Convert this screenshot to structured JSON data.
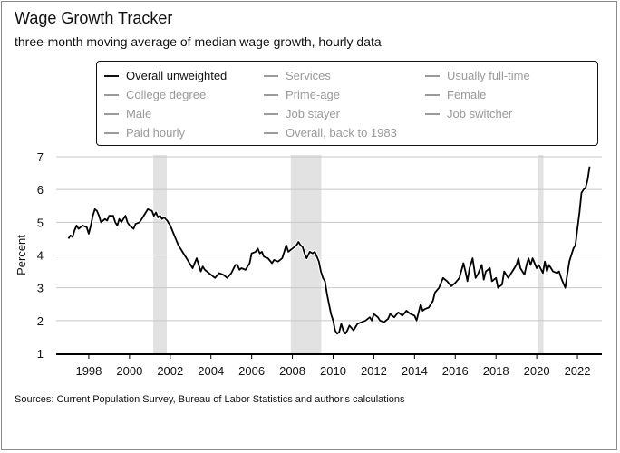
{
  "header": {
    "title": "Wage Growth Tracker",
    "subtitle": "three-month moving average of median wage growth, hourly data"
  },
  "legend": {
    "items": [
      {
        "label": "Overall unweighted",
        "active": true
      },
      {
        "label": "Services",
        "active": false
      },
      {
        "label": "Usually full-time",
        "active": false
      },
      {
        "label": "College degree",
        "active": false
      },
      {
        "label": "Prime-age",
        "active": false
      },
      {
        "label": "Female",
        "active": false
      },
      {
        "label": "Male",
        "active": false
      },
      {
        "label": "Job stayer",
        "active": false
      },
      {
        "label": "Job switcher",
        "active": false
      },
      {
        "label": "Paid hourly",
        "active": false
      },
      {
        "label": "Overall, back to 1983",
        "active": false
      }
    ]
  },
  "footer": {
    "source": "Sources: Current Population Survey, Bureau of Labor Statistics and author's calculations"
  },
  "colors": {
    "line": "#000000",
    "recession": "#e2e2e2",
    "grid": "#c8c8c8",
    "inactive_legend": "#9a9a9a"
  },
  "chart_data": {
    "type": "line",
    "title": "Wage Growth Tracker",
    "subtitle": "three-month moving average of median wage growth, hourly data",
    "xlabel": "",
    "ylabel": "Percent",
    "xlim": [
      1996.4,
      2023.2
    ],
    "ylim": [
      1,
      7
    ],
    "xticks": [
      1998,
      2000,
      2002,
      2004,
      2006,
      2008,
      2010,
      2012,
      2014,
      2016,
      2018,
      2020,
      2022
    ],
    "yticks": [
      1,
      2,
      3,
      4,
      5,
      6,
      7
    ],
    "grid": "horizontal",
    "recessions": [
      [
        2001.17,
        2001.83
      ],
      [
        2007.92,
        2009.42
      ],
      [
        2020.08,
        2020.33
      ]
    ],
    "series": [
      {
        "name": "Overall unweighted",
        "points": [
          [
            1997.0,
            4.5
          ],
          [
            1997.1,
            4.6
          ],
          [
            1997.2,
            4.55
          ],
          [
            1997.3,
            4.75
          ],
          [
            1997.4,
            4.9
          ],
          [
            1997.5,
            4.8
          ],
          [
            1997.7,
            4.9
          ],
          [
            1997.9,
            4.85
          ],
          [
            1998.0,
            4.65
          ],
          [
            1998.1,
            4.9
          ],
          [
            1998.2,
            5.2
          ],
          [
            1998.3,
            5.4
          ],
          [
            1998.4,
            5.35
          ],
          [
            1998.5,
            5.2
          ],
          [
            1998.6,
            5.0
          ],
          [
            1998.7,
            5.05
          ],
          [
            1998.8,
            5.1
          ],
          [
            1998.9,
            5.05
          ],
          [
            1999.0,
            5.2
          ],
          [
            1999.2,
            5.2
          ],
          [
            1999.3,
            5.0
          ],
          [
            1999.4,
            4.9
          ],
          [
            1999.5,
            5.1
          ],
          [
            1999.6,
            5.0
          ],
          [
            1999.7,
            5.1
          ],
          [
            1999.8,
            5.2
          ],
          [
            1999.9,
            5.0
          ],
          [
            2000.0,
            4.9
          ],
          [
            2000.2,
            4.8
          ],
          [
            2000.3,
            4.95
          ],
          [
            2000.5,
            5.0
          ],
          [
            2000.7,
            5.2
          ],
          [
            2000.9,
            5.4
          ],
          [
            2001.1,
            5.35
          ],
          [
            2001.2,
            5.2
          ],
          [
            2001.3,
            5.3
          ],
          [
            2001.4,
            5.15
          ],
          [
            2001.5,
            5.2
          ],
          [
            2001.6,
            5.1
          ],
          [
            2001.7,
            5.15
          ],
          [
            2001.85,
            5.05
          ],
          [
            2002.0,
            4.9
          ],
          [
            2002.2,
            4.6
          ],
          [
            2002.4,
            4.3
          ],
          [
            2002.6,
            4.1
          ],
          [
            2002.8,
            3.9
          ],
          [
            2003.0,
            3.7
          ],
          [
            2003.1,
            3.6
          ],
          [
            2003.2,
            3.75
          ],
          [
            2003.3,
            3.9
          ],
          [
            2003.4,
            3.7
          ],
          [
            2003.5,
            3.5
          ],
          [
            2003.6,
            3.65
          ],
          [
            2003.7,
            3.55
          ],
          [
            2003.9,
            3.45
          ],
          [
            2004.0,
            3.4
          ],
          [
            2004.2,
            3.3
          ],
          [
            2004.4,
            3.45
          ],
          [
            2004.6,
            3.4
          ],
          [
            2004.8,
            3.3
          ],
          [
            2005.0,
            3.45
          ],
          [
            2005.2,
            3.7
          ],
          [
            2005.3,
            3.7
          ],
          [
            2005.4,
            3.55
          ],
          [
            2005.5,
            3.6
          ],
          [
            2005.7,
            3.55
          ],
          [
            2005.9,
            3.75
          ],
          [
            2006.0,
            4.05
          ],
          [
            2006.2,
            4.1
          ],
          [
            2006.3,
            4.2
          ],
          [
            2006.4,
            4.05
          ],
          [
            2006.5,
            4.1
          ],
          [
            2006.6,
            3.95
          ],
          [
            2006.8,
            3.9
          ],
          [
            2007.0,
            3.75
          ],
          [
            2007.1,
            3.85
          ],
          [
            2007.3,
            3.8
          ],
          [
            2007.5,
            3.9
          ],
          [
            2007.6,
            4.1
          ],
          [
            2007.7,
            4.3
          ],
          [
            2007.8,
            4.1
          ],
          [
            2008.0,
            4.2
          ],
          [
            2008.2,
            4.3
          ],
          [
            2008.3,
            4.4
          ],
          [
            2008.4,
            4.3
          ],
          [
            2008.5,
            4.25
          ],
          [
            2008.6,
            4.05
          ],
          [
            2008.7,
            3.9
          ],
          [
            2008.85,
            4.1
          ],
          [
            2009.0,
            4.05
          ],
          [
            2009.1,
            4.1
          ],
          [
            2009.3,
            3.8
          ],
          [
            2009.4,
            3.5
          ],
          [
            2009.5,
            3.3
          ],
          [
            2009.6,
            3.2
          ],
          [
            2009.7,
            2.8
          ],
          [
            2009.8,
            2.5
          ],
          [
            2009.9,
            2.2
          ],
          [
            2010.0,
            2.0
          ],
          [
            2010.1,
            1.7
          ],
          [
            2010.2,
            1.6
          ],
          [
            2010.3,
            1.65
          ],
          [
            2010.4,
            1.9
          ],
          [
            2010.5,
            1.7
          ],
          [
            2010.6,
            1.6
          ],
          [
            2010.7,
            1.7
          ],
          [
            2010.8,
            1.85
          ],
          [
            2011.0,
            1.7
          ],
          [
            2011.2,
            1.9
          ],
          [
            2011.4,
            1.95
          ],
          [
            2011.6,
            2.0
          ],
          [
            2011.8,
            2.1
          ],
          [
            2011.9,
            2.0
          ],
          [
            2012.0,
            2.2
          ],
          [
            2012.2,
            2.1
          ],
          [
            2012.3,
            2.0
          ],
          [
            2012.5,
            1.95
          ],
          [
            2012.7,
            2.05
          ],
          [
            2012.8,
            2.2
          ],
          [
            2013.0,
            2.1
          ],
          [
            2013.2,
            2.25
          ],
          [
            2013.4,
            2.15
          ],
          [
            2013.6,
            2.3
          ],
          [
            2013.8,
            2.2
          ],
          [
            2014.0,
            2.15
          ],
          [
            2014.1,
            2.0
          ],
          [
            2014.2,
            2.25
          ],
          [
            2014.3,
            2.5
          ],
          [
            2014.4,
            2.3
          ],
          [
            2014.5,
            2.35
          ],
          [
            2014.7,
            2.4
          ],
          [
            2014.9,
            2.6
          ],
          [
            2015.0,
            2.85
          ],
          [
            2015.2,
            3.0
          ],
          [
            2015.4,
            3.3
          ],
          [
            2015.6,
            3.2
          ],
          [
            2015.8,
            3.05
          ],
          [
            2016.0,
            3.15
          ],
          [
            2016.2,
            3.3
          ],
          [
            2016.4,
            3.75
          ],
          [
            2016.5,
            3.5
          ],
          [
            2016.6,
            3.2
          ],
          [
            2016.7,
            3.6
          ],
          [
            2016.85,
            3.9
          ],
          [
            2017.0,
            3.3
          ],
          [
            2017.1,
            3.4
          ],
          [
            2017.3,
            3.7
          ],
          [
            2017.4,
            3.25
          ],
          [
            2017.5,
            3.5
          ],
          [
            2017.7,
            3.6
          ],
          [
            2017.8,
            3.2
          ],
          [
            2018.0,
            3.3
          ],
          [
            2018.1,
            3.0
          ],
          [
            2018.3,
            3.1
          ],
          [
            2018.4,
            3.5
          ],
          [
            2018.6,
            3.3
          ],
          [
            2018.8,
            3.5
          ],
          [
            2019.0,
            3.7
          ],
          [
            2019.1,
            3.9
          ],
          [
            2019.2,
            3.6
          ],
          [
            2019.4,
            3.4
          ],
          [
            2019.5,
            3.7
          ],
          [
            2019.6,
            3.9
          ],
          [
            2019.7,
            3.7
          ],
          [
            2019.8,
            3.9
          ],
          [
            2020.0,
            3.6
          ],
          [
            2020.1,
            3.7
          ],
          [
            2020.3,
            3.45
          ],
          [
            2020.4,
            3.8
          ],
          [
            2020.5,
            3.5
          ],
          [
            2020.6,
            3.7
          ],
          [
            2020.8,
            3.5
          ],
          [
            2021.0,
            3.45
          ],
          [
            2021.1,
            3.5
          ],
          [
            2021.2,
            3.3
          ],
          [
            2021.4,
            3.0
          ],
          [
            2021.5,
            3.4
          ],
          [
            2021.6,
            3.8
          ],
          [
            2021.7,
            4.0
          ],
          [
            2021.8,
            4.2
          ],
          [
            2021.9,
            4.3
          ],
          [
            2022.0,
            4.8
          ],
          [
            2022.1,
            5.3
          ],
          [
            2022.2,
            5.9
          ],
          [
            2022.3,
            6.0
          ],
          [
            2022.4,
            6.05
          ],
          [
            2022.5,
            6.3
          ],
          [
            2022.6,
            6.7
          ]
        ]
      }
    ]
  }
}
